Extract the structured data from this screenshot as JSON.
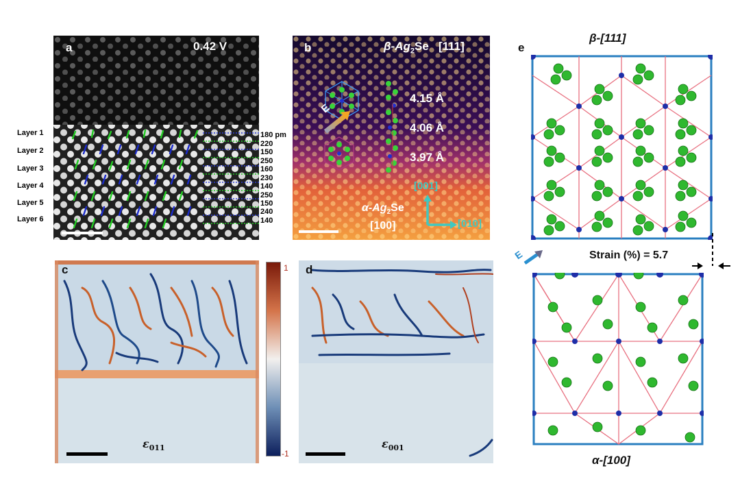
{
  "panel_a": {
    "letter": "a",
    "voltage": "0.42 V",
    "layers": [
      "Layer 1",
      "Layer 2",
      "Layer 3",
      "Layer 4",
      "Layer 5",
      "Layer 6"
    ],
    "spacings": [
      "180 pm",
      "220",
      "150",
      "250",
      "160",
      "230",
      "140",
      "250",
      "150",
      "240",
      "140"
    ]
  },
  "panel_b": {
    "letter": "b",
    "title_prefix": "β-Ag",
    "title_sub": "2",
    "title_suffix": "Se",
    "zone": "[111]",
    "field_label": "E",
    "d1": "4.15 Å",
    "d2": "4.06 Å",
    "d3": "3.97 Å",
    "alpha_prefix": "α-Ag",
    "alpha_sub": "2",
    "alpha_suffix": "Se",
    "alpha_zone": "[100]",
    "axis_up": "[001]",
    "axis_right": "[010]"
  },
  "panel_c": {
    "letter": "c",
    "symbol": "ε",
    "subscript": "011"
  },
  "panel_d": {
    "letter": "d",
    "symbol": "ε",
    "subscript": "001"
  },
  "colorbar": {
    "max_label": "1",
    "min_label": "-1",
    "colors": [
      "#7a1a0a",
      "#f2f0ee",
      "#0d1f5c"
    ]
  },
  "panel_e": {
    "letter": "e",
    "top_title": "β-[111]",
    "bottom_title": "α-[100]",
    "field_label": "E",
    "strain": "Strain (%) = 5.7"
  }
}
